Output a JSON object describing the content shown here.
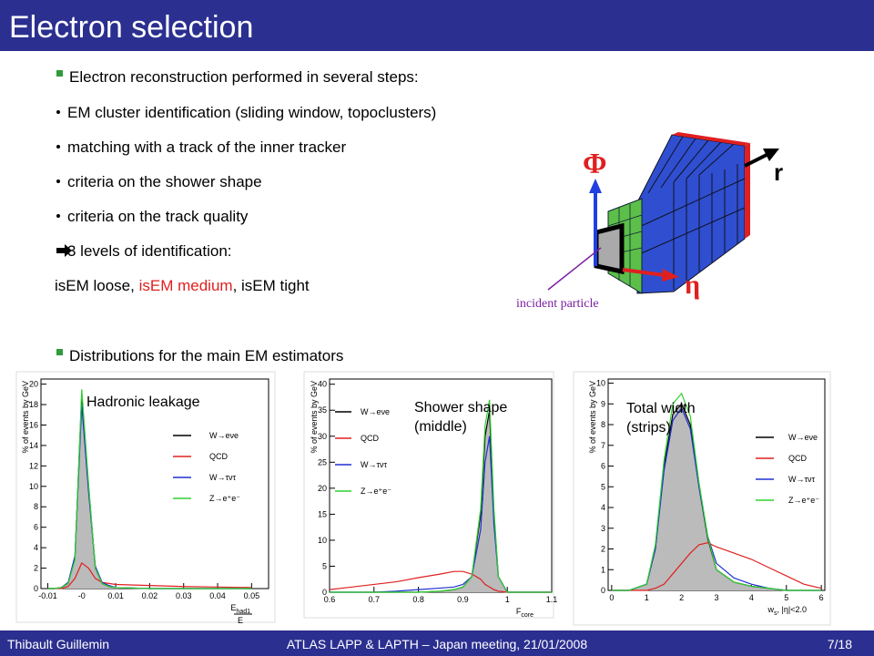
{
  "header": {
    "title": "Electron selection"
  },
  "intro": "Electron reconstruction performed in several steps:",
  "steps": [
    "EM cluster identification (sliding window, topoclusters)",
    "matching with a track of the inner tracker",
    "criteria on the shower shape",
    "criteria on the track quality"
  ],
  "levels": {
    "intro": "3 levels of identification:",
    "loose": "isEM loose, ",
    "medium": "isEM medium",
    "tight": ", isEM tight"
  },
  "figure": {
    "phi": "Φ",
    "r": "r",
    "eta": "η",
    "incident": "incident particle"
  },
  "distributions": "Distributions for the main EM estimators",
  "footer": {
    "author": "Thibault Guillemin",
    "meeting": "ATLAS LAPP & LAPTH – Japan meeting, 21/01/2008",
    "page": "7/18"
  },
  "chart_data": [
    {
      "type": "line",
      "annotation": "Hadronic leakage",
      "ylabel": "% of events by GeV",
      "xlabel": {
        "main": "E",
        "sub": "had1",
        "denominator": "E"
      },
      "xlim": [
        -0.012,
        0.055
      ],
      "ylim": [
        0,
        20.5
      ],
      "xticks": [
        -0.01,
        {
          "value": 0,
          "label": "-0"
        },
        0.01,
        0.02,
        0.03,
        0.04,
        0.05
      ],
      "yticks": [
        0,
        2,
        4,
        6,
        8,
        10,
        12,
        14,
        16,
        18,
        20
      ],
      "x": [
        -0.01,
        -0.008,
        -0.006,
        -0.004,
        -0.002,
        0,
        0.002,
        0.004,
        0.006,
        0.008,
        0.01,
        0.02,
        0.03,
        0.04,
        0.05
      ],
      "series": [
        {
          "name": "W→eνe",
          "color": "#000000",
          "values": [
            0,
            0,
            0.1,
            0.5,
            3,
            19,
            10,
            2,
            0.5,
            0.2,
            0.1,
            0,
            0,
            0,
            0
          ]
        },
        {
          "name": "QCD",
          "color": "#e02020",
          "values": [
            0,
            0,
            0,
            0.2,
            1,
            2.5,
            2,
            1,
            0.6,
            0.5,
            0.4,
            0.3,
            0.2,
            0.15,
            0.1
          ]
        },
        {
          "name": "W→τντ",
          "color": "#2030d0",
          "values": [
            0,
            0,
            0.1,
            0.6,
            3.2,
            18,
            9.5,
            2.2,
            0.6,
            0.3,
            0.1,
            0,
            0,
            0,
            0
          ]
        },
        {
          "name": "Z→e⁺e⁻",
          "color": "#30d030",
          "values": [
            0,
            0,
            0.1,
            0.5,
            2.8,
            19.5,
            10.3,
            2,
            0.5,
            0.2,
            0.1,
            0,
            0,
            0,
            0
          ]
        }
      ]
    },
    {
      "type": "line",
      "annotation": "Shower shape (middle)",
      "ylabel": "% of events by GeV",
      "xlabel": {
        "main": "F",
        "sub": "core"
      },
      "xlim": [
        0.6,
        1.1
      ],
      "ylim": [
        0,
        41
      ],
      "xticks": [
        0.6,
        0.7,
        0.8,
        0.9,
        1,
        1.1
      ],
      "yticks": [
        0,
        5,
        10,
        15,
        20,
        25,
        30,
        35,
        40
      ],
      "x": [
        0.6,
        0.65,
        0.7,
        0.75,
        0.8,
        0.85,
        0.88,
        0.9,
        0.92,
        0.94,
        0.95,
        0.96,
        0.97,
        0.98,
        1,
        1.05,
        1.1
      ],
      "series": [
        {
          "name": "W→eνe",
          "color": "#000000",
          "values": [
            0,
            0,
            0,
            0,
            0,
            0.2,
            0.5,
            1,
            3,
            15,
            30,
            35,
            15,
            3,
            0,
            0,
            0
          ]
        },
        {
          "name": "QCD",
          "color": "#e02020",
          "values": [
            0.5,
            1,
            1.5,
            2,
            2.8,
            3.5,
            4,
            4,
            3.5,
            2.5,
            1.5,
            1,
            0.5,
            0.2,
            0,
            0,
            0
          ]
        },
        {
          "name": "W→τντ",
          "color": "#2030d0",
          "values": [
            0,
            0,
            0,
            0.2,
            0.5,
            0.8,
            1,
            1.5,
            3,
            12,
            25,
            30,
            13,
            3,
            0,
            0,
            0
          ]
        },
        {
          "name": "Z→e⁺e⁻",
          "color": "#30d030",
          "values": [
            0,
            0,
            0,
            0,
            0,
            0.2,
            0.5,
            1,
            3,
            16,
            32,
            37,
            16,
            3,
            0,
            0,
            0
          ]
        }
      ]
    },
    {
      "type": "line",
      "annotation": "Total width (strips)",
      "ylabel": "% of events by GeV",
      "xlabel": {
        "main": "w",
        "sub": "s",
        "suffix": ", |η|<2.0"
      },
      "xlim": [
        -0.1,
        6.1
      ],
      "ylim": [
        0,
        10.2
      ],
      "xticks": [
        0,
        1,
        2,
        3,
        4,
        5,
        6
      ],
      "yticks": [
        0,
        1,
        2,
        3,
        4,
        5,
        6,
        7,
        8,
        9,
        10
      ],
      "x": [
        0,
        0.5,
        1,
        1.25,
        1.5,
        1.75,
        2,
        2.25,
        2.5,
        2.75,
        3,
        3.5,
        4,
        4.5,
        5,
        5.5,
        6
      ],
      "series": [
        {
          "name": "W→eνe",
          "color": "#000000",
          "values": [
            0,
            0,
            0.3,
            2,
            6,
            8.5,
            9,
            8,
            5,
            2.5,
            1,
            0.4,
            0.2,
            0.1,
            0,
            0,
            0
          ]
        },
        {
          "name": "QCD",
          "color": "#e02020",
          "values": [
            0,
            0,
            0,
            0.1,
            0.3,
            0.8,
            1.3,
            1.8,
            2.2,
            2.3,
            2.1,
            1.8,
            1.5,
            1.1,
            0.7,
            0.3,
            0.1
          ]
        },
        {
          "name": "W→τντ",
          "color": "#2030d0",
          "values": [
            0,
            0,
            0.3,
            2,
            5.8,
            8.2,
            8.8,
            7.8,
            5,
            2.6,
            1.3,
            0.6,
            0.3,
            0.1,
            0,
            0,
            0
          ]
        },
        {
          "name": "Z→e⁺e⁻",
          "color": "#30d030",
          "values": [
            0,
            0,
            0.3,
            2.2,
            6.3,
            9,
            9.5,
            8.4,
            5.2,
            2.6,
            1,
            0.4,
            0.2,
            0.1,
            0,
            0,
            0
          ]
        }
      ]
    }
  ]
}
